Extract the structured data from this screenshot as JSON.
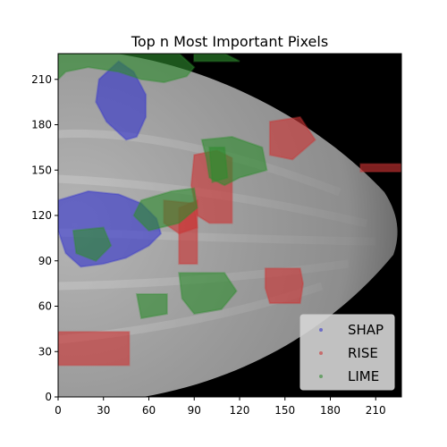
{
  "chart_data": {
    "type": "scatter",
    "title": "Top n Most Important Pixels",
    "xlim": [
      0,
      227
    ],
    "ylim": [
      0,
      227
    ],
    "x_ticks": [
      0,
      30,
      60,
      90,
      120,
      150,
      180,
      210
    ],
    "y_ticks": [
      0,
      30,
      60,
      90,
      120,
      150,
      180,
      210
    ],
    "background": "grayscale mammogram image (breast tissue bulging right, black background)",
    "legend_position": "lower-right",
    "series": [
      {
        "name": "SHAP",
        "color": "#3333cc",
        "regions": [
          {
            "shape": "polygon",
            "points": [
              [
                0,
                130
              ],
              [
                20,
                136
              ],
              [
                40,
                134
              ],
              [
                55,
                128
              ],
              [
                65,
                118
              ],
              [
                68,
                108
              ],
              [
                60,
                100
              ],
              [
                45,
                92
              ],
              [
                30,
                88
              ],
              [
                15,
                86
              ],
              [
                5,
                95
              ],
              [
                0,
                110
              ]
            ]
          },
          {
            "shape": "polygon",
            "points": [
              [
                40,
                222
              ],
              [
                50,
                215
              ],
              [
                58,
                200
              ],
              [
                58,
                185
              ],
              [
                52,
                172
              ],
              [
                45,
                170
              ],
              [
                32,
                182
              ],
              [
                25,
                195
              ],
              [
                27,
                210
              ]
            ]
          }
        ]
      },
      {
        "name": "RISE",
        "color": "#cc3333",
        "regions": [
          {
            "shape": "polygon",
            "points": [
              [
                0,
                43
              ],
              [
                47,
                43
              ],
              [
                47,
                21
              ],
              [
                0,
                21
              ]
            ]
          },
          {
            "shape": "polygon",
            "points": [
              [
                137,
                85
              ],
              [
                160,
                85
              ],
              [
                162,
                75
              ],
              [
                160,
                62
              ],
              [
                140,
                62
              ],
              [
                137,
                72
              ]
            ]
          },
          {
            "shape": "polygon",
            "points": [
              [
                140,
                182
              ],
              [
                160,
                185
              ],
              [
                170,
                170
              ],
              [
                155,
                157
              ],
              [
                140,
                160
              ]
            ]
          },
          {
            "shape": "polygon",
            "points": [
              [
                80,
                125
              ],
              [
                92,
                130
              ],
              [
                92,
                88
              ],
              [
                80,
                88
              ]
            ]
          },
          {
            "shape": "polygon",
            "points": [
              [
                90,
                160
              ],
              [
                105,
                163
              ],
              [
                115,
                158
              ],
              [
                115,
                115
              ],
              [
                100,
                115
              ],
              [
                92,
                120
              ],
              [
                88,
                140
              ]
            ]
          },
          {
            "shape": "polygon",
            "points": [
              [
                200,
                154
              ],
              [
                227,
                154
              ],
              [
                227,
                149
              ],
              [
                200,
                149
              ]
            ]
          },
          {
            "shape": "polygon",
            "points": [
              [
                70,
                130
              ],
              [
                90,
                128
              ],
              [
                92,
                112
              ],
              [
                80,
                108
              ],
              [
                70,
                115
              ]
            ]
          }
        ]
      },
      {
        "name": "LIME",
        "color": "#2e8b2e",
        "regions": [
          {
            "shape": "polygon",
            "points": [
              [
                0,
                227
              ],
              [
                80,
                227
              ],
              [
                90,
                218
              ],
              [
                85,
                212
              ],
              [
                70,
                208
              ],
              [
                55,
                210
              ],
              [
                40,
                215
              ],
              [
                20,
                218
              ],
              [
                5,
                215
              ],
              [
                0,
                210
              ]
            ]
          },
          {
            "shape": "polygon",
            "points": [
              [
                90,
                227
              ],
              [
                110,
                227
              ],
              [
                120,
                222
              ],
              [
                90,
                222
              ]
            ]
          },
          {
            "shape": "polygon",
            "points": [
              [
                95,
                170
              ],
              [
                115,
                172
              ],
              [
                135,
                165
              ],
              [
                138,
                150
              ],
              [
                120,
                145
              ],
              [
                110,
                140
              ],
              [
                100,
                145
              ],
              [
                98,
                158
              ]
            ]
          },
          {
            "shape": "polygon",
            "points": [
              [
                55,
                130
              ],
              [
                75,
                136
              ],
              [
                90,
                138
              ],
              [
                92,
                125
              ],
              [
                80,
                115
              ],
              [
                60,
                110
              ],
              [
                50,
                120
              ]
            ]
          },
          {
            "shape": "polygon",
            "points": [
              [
                10,
                110
              ],
              [
                30,
                112
              ],
              [
                35,
                100
              ],
              [
                25,
                90
              ],
              [
                12,
                95
              ]
            ]
          },
          {
            "shape": "polygon",
            "points": [
              [
                80,
                82
              ],
              [
                110,
                82
              ],
              [
                118,
                70
              ],
              [
                108,
                58
              ],
              [
                90,
                55
              ],
              [
                82,
                65
              ]
            ]
          },
          {
            "shape": "polygon",
            "points": [
              [
                52,
                68
              ],
              [
                72,
                68
              ],
              [
                72,
                55
              ],
              [
                55,
                52
              ]
            ]
          },
          {
            "shape": "polygon",
            "points": [
              [
                100,
                165
              ],
              [
                110,
                165
              ],
              [
                112,
                145
              ],
              [
                102,
                142
              ]
            ]
          }
        ]
      }
    ]
  }
}
